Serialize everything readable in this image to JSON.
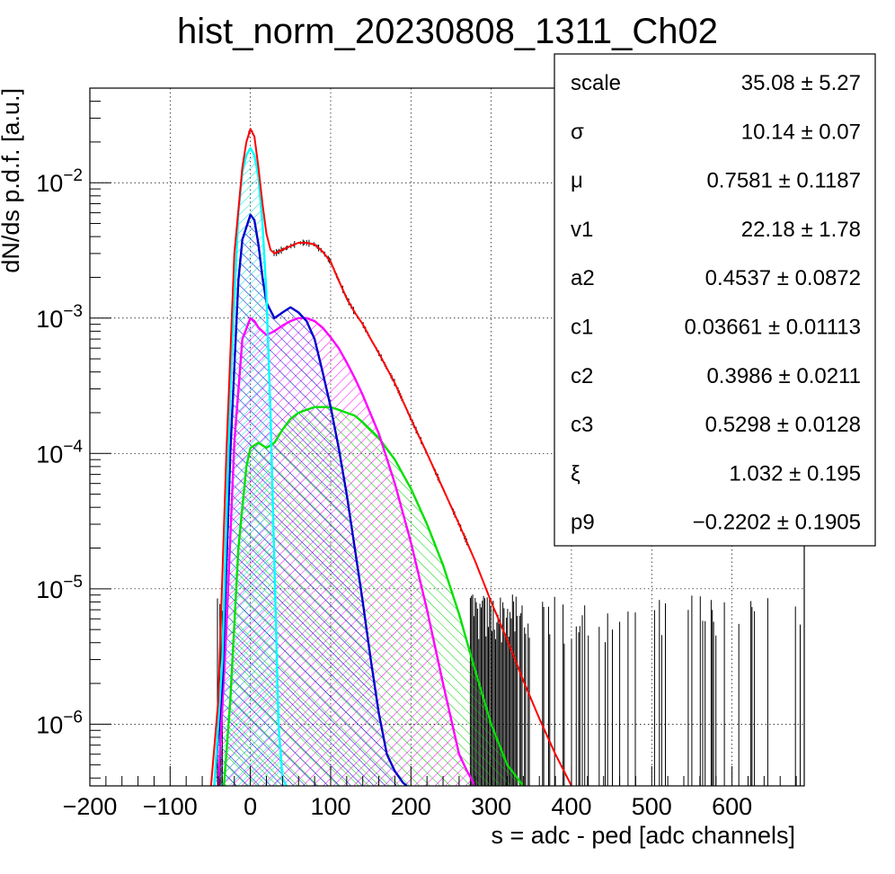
{
  "chart_data": {
    "type": "line",
    "title": "hist_norm_20230808_1311_Ch02",
    "xlabel": "s = adc - ped [adc channels]",
    "ylabel": "dN/ds p.d.f. [a.u.]",
    "xlim": [
      -200,
      690
    ],
    "ylim": [
      3.5e-07,
      0.05
    ],
    "yscale": "log",
    "grid": true,
    "x_ticks": [
      -200,
      -100,
      0,
      100,
      200,
      300,
      400,
      500,
      600
    ],
    "x_tick_labels": [
      "−200",
      "−100",
      "0",
      "100",
      "200",
      "300",
      "400",
      "500",
      "600"
    ],
    "y_ticks": [
      1e-06,
      1e-05,
      0.0001,
      0.001,
      0.01
    ],
    "y_tick_labels": [
      {
        "base": "10",
        "exp": "−6"
      },
      {
        "base": "10",
        "exp": "−5"
      },
      {
        "base": "10",
        "exp": "−4"
      },
      {
        "base": "10",
        "exp": "−3"
      },
      {
        "base": "10",
        "exp": "−2"
      }
    ],
    "series": [
      {
        "color": "#ff0000",
        "fill": false,
        "x": [
          -50,
          -40,
          -30,
          -20,
          -10,
          -5,
          0,
          5,
          10,
          15,
          20,
          25,
          30,
          40,
          50,
          60,
          70,
          80,
          90,
          100,
          110,
          120,
          130,
          140,
          150,
          160,
          180,
          200,
          220,
          240,
          260,
          280,
          300,
          320,
          340,
          360,
          380,
          400
        ],
        "y": [
          3e-07,
          1.5e-06,
          0.0001,
          0.003,
          0.013,
          0.02,
          0.025,
          0.022,
          0.013,
          0.007,
          0.0042,
          0.0032,
          0.003,
          0.0032,
          0.0034,
          0.0036,
          0.0036,
          0.0035,
          0.0031,
          0.0026,
          0.0019,
          0.0014,
          0.0011,
          0.0009,
          0.0007,
          0.00055,
          0.00033,
          0.00018,
          0.0001,
          5.5e-05,
          3e-05,
          1.6e-05,
          8e-06,
          4.2e-06,
          2.1e-06,
          1.1e-06,
          6e-07,
          3.5e-07
        ]
      },
      {
        "color": "#00ffff",
        "fill": true,
        "x": [
          -45,
          -35,
          -25,
          -15,
          -10,
          -5,
          0,
          5,
          10,
          15,
          20,
          25,
          30,
          35,
          40,
          45
        ],
        "y": [
          3.5e-07,
          3e-06,
          0.0003,
          0.006,
          0.012,
          0.016,
          0.018,
          0.016,
          0.011,
          0.005,
          0.0015,
          0.0002,
          1.5e-05,
          1e-06,
          4e-07,
          3.5e-07
        ]
      },
      {
        "color": "#0000cc",
        "fill": true,
        "x": [
          -45,
          -35,
          -25,
          -15,
          -10,
          0,
          5,
          10,
          15,
          20,
          30,
          40,
          50,
          60,
          70,
          80,
          90,
          100,
          110,
          120,
          130,
          140,
          150,
          160,
          170,
          180,
          190,
          195
        ],
        "y": [
          3.5e-07,
          2e-06,
          0.0001,
          0.0019,
          0.0038,
          0.0058,
          0.0053,
          0.0035,
          0.002,
          0.0013,
          0.001,
          0.0011,
          0.0012,
          0.0011,
          0.00095,
          0.0007,
          0.0004,
          0.00022,
          0.00011,
          5e-05,
          2e-05,
          8e-06,
          3e-06,
          1.2e-06,
          6e-07,
          4.5e-07,
          3.7e-07,
          3.5e-07
        ]
      },
      {
        "color": "#ff00ff",
        "fill": true,
        "x": [
          -40,
          -30,
          -20,
          -10,
          0,
          5,
          10,
          20,
          30,
          40,
          50,
          60,
          70,
          80,
          90,
          100,
          110,
          120,
          130,
          140,
          160,
          180,
          200,
          220,
          240,
          260,
          270,
          280
        ],
        "y": [
          3.5e-07,
          5e-06,
          0.00012,
          0.0007,
          0.001,
          0.00095,
          0.00085,
          0.00075,
          0.0008,
          0.00088,
          0.00095,
          0.001,
          0.001,
          0.00095,
          0.00085,
          0.00072,
          0.0006,
          0.00047,
          0.00036,
          0.00027,
          0.00014,
          6e-05,
          2.2e-05,
          7e-06,
          2e-06,
          6e-07,
          4.5e-07,
          3.5e-07
        ]
      },
      {
        "color": "#00e000",
        "fill": true,
        "x": [
          -33,
          -25,
          -15,
          -5,
          0,
          10,
          20,
          30,
          40,
          50,
          60,
          70,
          80,
          90,
          100,
          110,
          120,
          130,
          140,
          160,
          180,
          200,
          220,
          240,
          260,
          280,
          300,
          320,
          340
        ],
        "y": [
          3.5e-07,
          1.5e-06,
          2e-05,
          8e-05,
          0.00011,
          0.00012,
          0.00011,
          0.00012,
          0.00015,
          0.00018,
          0.0002,
          0.00021,
          0.00022,
          0.00022,
          0.00022,
          0.00021,
          0.0002,
          0.00019,
          0.00017,
          0.00013,
          9e-05,
          5.5e-05,
          3e-05,
          1.5e-05,
          6.5e-06,
          2.5e-06,
          1e-06,
          5e-07,
          3.5e-07
        ]
      }
    ]
  },
  "stats": [
    {
      "name": "scale",
      "value": "35.08 ± 5.27"
    },
    {
      "name": "σ",
      "value": "10.14 ± 0.07"
    },
    {
      "name": "μ",
      "value": "0.7581 ± 0.1187"
    },
    {
      "name": "v1",
      "value": "22.18 ± 1.78"
    },
    {
      "name": "a2",
      "value": "0.4537 ± 0.0872"
    },
    {
      "name": "c1",
      "value": "0.03661 ± 0.01113"
    },
    {
      "name": "c2",
      "value": "0.3986 ± 0.0211"
    },
    {
      "name": "c3",
      "value": "0.5298 ± 0.0128"
    },
    {
      "name": "ξ",
      "value": "1.032 ± 0.195"
    },
    {
      "name": "p9",
      "value": "−0.2202 ± 0.1905"
    }
  ]
}
